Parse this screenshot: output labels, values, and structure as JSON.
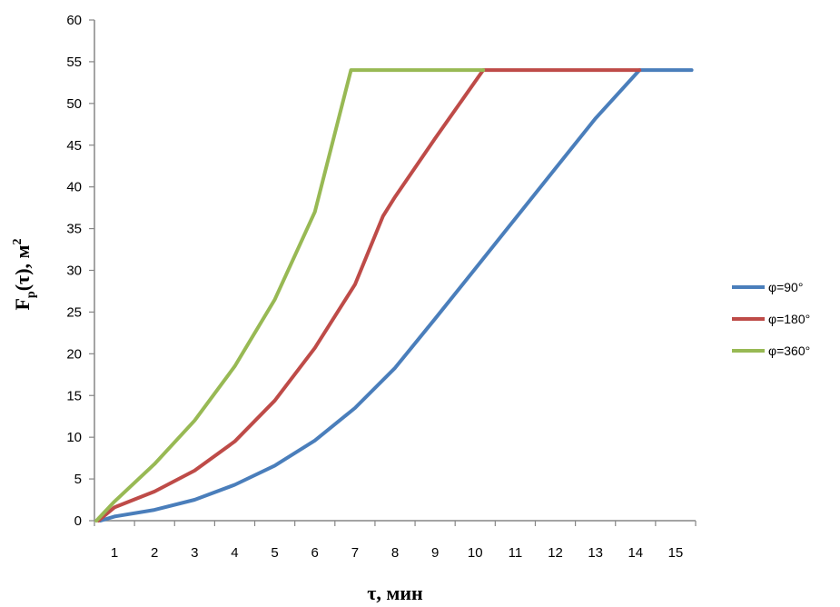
{
  "chart_data": {
    "type": "line",
    "title": "",
    "xlabel": "τ, мин",
    "ylabel": {
      "main": "F",
      "sub": "р",
      "rest": "(τ),  м",
      "sup": "2"
    },
    "xlim": [
      0.5,
      15.5
    ],
    "ylim": [
      0,
      60
    ],
    "x_ticks": [
      1,
      2,
      3,
      4,
      5,
      6,
      7,
      8,
      9,
      10,
      11,
      12,
      13,
      14,
      15
    ],
    "y_ticks": [
      0,
      5,
      10,
      15,
      20,
      25,
      30,
      35,
      40,
      45,
      50,
      55,
      60
    ],
    "grid": false,
    "legend_position": "right",
    "series": [
      {
        "name": "φ=90°",
        "color": "#4a7ebb",
        "points": [
          [
            0.65,
            0
          ],
          [
            1,
            0.5
          ],
          [
            2,
            1.3
          ],
          [
            3,
            2.5
          ],
          [
            4,
            4.3
          ],
          [
            5,
            6.6
          ],
          [
            6,
            9.6
          ],
          [
            7,
            13.5
          ],
          [
            8,
            18.3
          ],
          [
            9,
            24.2
          ],
          [
            10,
            30.2
          ],
          [
            11,
            36.2
          ],
          [
            12,
            42.2
          ],
          [
            13,
            48.2
          ],
          [
            14.1,
            54
          ],
          [
            15.4,
            54
          ]
        ]
      },
      {
        "name": "φ=180°",
        "color": "#be4b48",
        "points": [
          [
            0.6,
            0
          ],
          [
            1,
            1.6
          ],
          [
            2,
            3.5
          ],
          [
            3,
            6
          ],
          [
            4,
            9.5
          ],
          [
            5,
            14.4
          ],
          [
            6,
            20.7
          ],
          [
            7,
            28.3
          ],
          [
            7.7,
            36.5
          ],
          [
            8,
            38.8
          ],
          [
            9,
            45.8
          ],
          [
            10.2,
            54
          ],
          [
            14.1,
            54
          ]
        ]
      },
      {
        "name": "φ=360°",
        "color": "#98b954",
        "points": [
          [
            0.55,
            0
          ],
          [
            1,
            2.3
          ],
          [
            2,
            6.8
          ],
          [
            3,
            12
          ],
          [
            4,
            18.5
          ],
          [
            5,
            26.5
          ],
          [
            6,
            37
          ],
          [
            6.9,
            54
          ],
          [
            10.2,
            54
          ]
        ]
      }
    ]
  }
}
